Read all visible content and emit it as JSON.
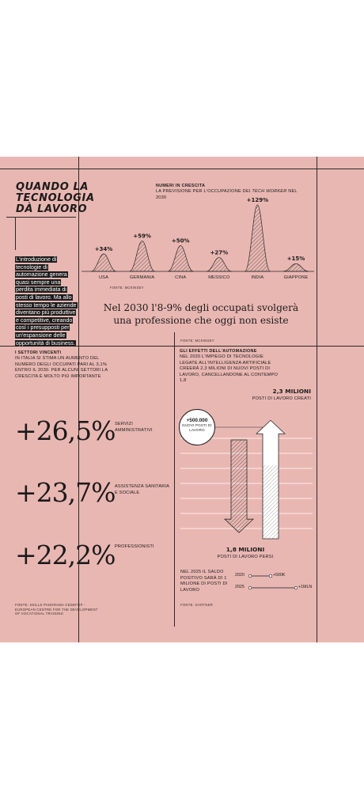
{
  "title": {
    "line1": "Quando la",
    "line2": "tecnologia",
    "line3": "dà lavoro"
  },
  "intro": "L'introduzione di tecnologie di automazione genera quasi sempre una perdita immediata di posti di lavoro. Ma allo stesso tempo le aziende diventano più produttive e competitive, creando così i presupposti per un'espansione delle opportunità di business.",
  "growth": {
    "heading": "Numeri in crescita",
    "subtitle_pre": "La previsione per l'occupazione dei",
    "subtitle_em": "tech worker",
    "subtitle_post": "nel 2030",
    "source": "Fonte: McKinsey",
    "chart_data": {
      "type": "area",
      "categories": [
        "USA",
        "GERMANIA",
        "CINA",
        "MESSICO",
        "INDIA",
        "GIAPPONE"
      ],
      "values": [
        34,
        59,
        50,
        27,
        129,
        15
      ],
      "labels": [
        "+34%",
        "+59%",
        "+50%",
        "+27%",
        "+129%",
        "+15%"
      ]
    }
  },
  "quote": {
    "line1": "Nel 2030 l'8-9% degli occupati svolgerà",
    "line2": "una professione che oggi non esiste"
  },
  "sectors": {
    "heading": "I settori vincenti",
    "body": "In Italia si stima un aumento del numero degli occupati pari al 3,1% entro il 2030. Per alcuni settori la crescita è molto più importante",
    "items": [
      {
        "value": "+26,5%",
        "label": "Servizi amministrativi"
      },
      {
        "value": "+23,7%",
        "label": "Assistenza sanitaria e sociale"
      },
      {
        "value": "+22,2%",
        "label": "Professionisti"
      }
    ],
    "source": "Fonte: Skills Panorama Cedefop - European Centre for the Development of Vocational Training"
  },
  "automation": {
    "heading": "Gli effetti dell'automazione",
    "body": "Nel 2020 l'impiego di tecnologie legate all'intelligenza artificiale creerà 2,3 milioni di nuovi posti di lavoro, cancellandone al contempo 1,8",
    "source": "Fonte: McKinsey",
    "created_value": "2,3 milioni",
    "created_label": "Posti di lavoro creati",
    "lost_value": "1,8 milioni",
    "lost_label": "Posti di lavoro persi",
    "bubble_value": "+500.000",
    "bubble_label": "Nuovi posti di lavoro",
    "chart_data": {
      "type": "bar",
      "categories": [
        "creati",
        "persi"
      ],
      "values": [
        2.3,
        -1.8
      ],
      "net": 0.5
    }
  },
  "balance": {
    "text": "Nel 2025 il saldo positivo sarà di 1 milione di posti di lavoro",
    "rows": [
      {
        "year": "2020",
        "value": "+500K",
        "fraction": 0.5
      },
      {
        "year": "2025",
        "value": "+1MLN",
        "fraction": 1.0
      }
    ],
    "source": "Fonte: Gartner"
  },
  "colors": {
    "background": "#e9b7b2",
    "ink": "#1b1b1b"
  }
}
